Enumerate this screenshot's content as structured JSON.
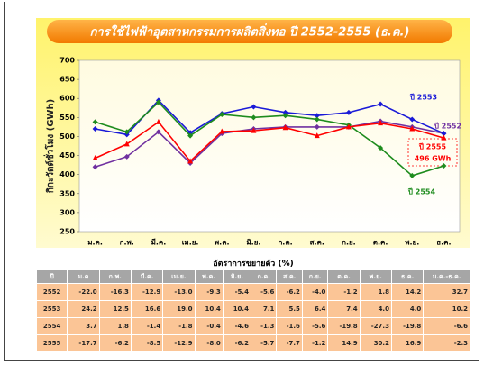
{
  "chart_data": {
    "type": "line",
    "title": "การใช้ไฟฟ้าอุตสาหกรรมการผลิตสิ่งทอ ปี 2552-2555 (ธ.ค.)",
    "y_label": "กิกะวัตต์ชั่วโมง (GWh)",
    "categories": [
      "ม.ค.",
      "ก.พ.",
      "มี.ค.",
      "เม.ย.",
      "พ.ค.",
      "มิ.ย.",
      "ก.ค.",
      "ส.ค.",
      "ก.ย.",
      "ต.ค.",
      "พ.ย.",
      "ธ.ค."
    ],
    "series": [
      {
        "name": "2552",
        "color": "#7030a0",
        "marker": "diamond",
        "values": [
          420,
          447,
          512,
          430,
          508,
          520,
          525,
          525,
          525,
          540,
          525,
          508
        ]
      },
      {
        "name": "2553",
        "color": "#1a1ad8",
        "marker": "diamond",
        "values": [
          520,
          505,
          595,
          510,
          560,
          578,
          563,
          555,
          563,
          585,
          545,
          508
        ]
      },
      {
        "name": "2554",
        "color": "#1e8c1e",
        "marker": "diamond",
        "values": [
          538,
          512,
          590,
          502,
          558,
          550,
          555,
          545,
          530,
          470,
          397,
          423
        ]
      },
      {
        "name": "2555",
        "color": "#ff0000",
        "marker": "triangle",
        "values": [
          443,
          480,
          538,
          435,
          513,
          515,
          523,
          502,
          525,
          535,
          520,
          496
        ]
      }
    ],
    "annotations": [
      "ปี 2553",
      "ปี 2552",
      "ปี 2555",
      "496 GWh",
      "ปี 2554"
    ],
    "ylim": [
      250,
      700
    ],
    "yticks": [
      250,
      300,
      350,
      400,
      450,
      500,
      550,
      600,
      650,
      700
    ],
    "grid": false
  },
  "table": {
    "title": "อัตราการขยายตัว (%)",
    "header": [
      "ปี",
      "ม.ค",
      "ก.พ.",
      "มี.ค.",
      "เม.ย.",
      "พ.ค.",
      "มิ.ย.",
      "ก.ค.",
      "ส.ค.",
      "ก.ย.",
      "ต.ค.",
      "พ.ย.",
      "ธ.ค.",
      "ม.ค.-ธ.ค."
    ],
    "rows": [
      [
        "2552",
        "-22.0",
        "-16.3",
        "-12.9",
        "-13.0",
        "-9.3",
        "-5.4",
        "-5.6",
        "-6.2",
        "-4.0",
        "-1.2",
        "1.8",
        "14.2",
        "32.7"
      ],
      [
        "2553",
        "24.2",
        "12.5",
        "16.6",
        "19.0",
        "10.4",
        "10.4",
        "7.1",
        "5.5",
        "6.4",
        "7.4",
        "4.0",
        "4.0",
        "10.2"
      ],
      [
        "2554",
        "3.7",
        "1.8",
        "-1.4",
        "-1.8",
        "-0.4",
        "-4.6",
        "-1.3",
        "-1.6",
        "-5.6",
        "-19.8",
        "-27.3",
        "-19.8",
        "-6.6"
      ],
      [
        "2555",
        "-17.7",
        "-6.2",
        "-8.5",
        "-12.9",
        "-8.0",
        "-6.2",
        "-5.7",
        "-7.7",
        "-1.2",
        "14.9",
        "30.2",
        "16.9",
        "-2.3"
      ]
    ]
  }
}
